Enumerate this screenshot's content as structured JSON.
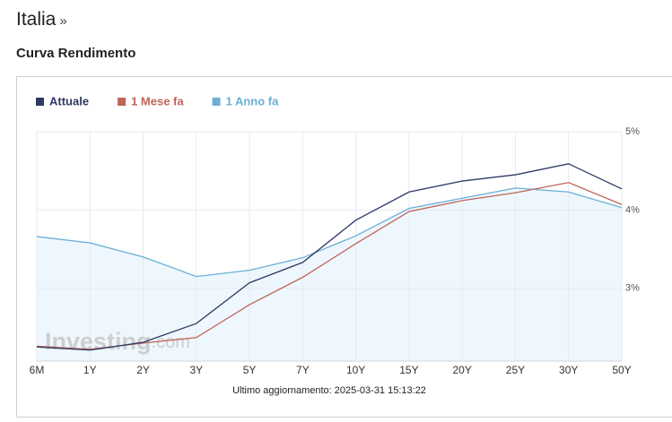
{
  "header": {
    "title": "Italia",
    "arrow": "»",
    "subtitle": "Curva Rendimento"
  },
  "chart_data": {
    "type": "line",
    "categories": [
      "6M",
      "1Y",
      "2Y",
      "3Y",
      "5Y",
      "7Y",
      "10Y",
      "15Y",
      "20Y",
      "25Y",
      "30Y",
      "50Y"
    ],
    "series": [
      {
        "name": "Attuale",
        "color": "#2e3a63",
        "values": [
          2.25,
          2.21,
          2.31,
          2.55,
          3.07,
          3.33,
          3.87,
          4.23,
          4.37,
          4.45,
          4.59,
          4.27
        ]
      },
      {
        "name": "1 Mese fa",
        "color": "#c0645a",
        "values": [
          2.26,
          2.22,
          2.3,
          2.37,
          2.79,
          3.14,
          3.57,
          3.98,
          4.12,
          4.22,
          4.35,
          4.07
        ]
      },
      {
        "name": "1 Anno fa",
        "color": "#6ab0d6",
        "fill": "#eef7fd",
        "values": [
          3.66,
          3.58,
          3.4,
          3.15,
          3.23,
          3.39,
          3.67,
          4.02,
          4.15,
          4.28,
          4.23,
          4.03
        ]
      }
    ],
    "ylim": [
      2.07,
      5
    ],
    "yticks": [
      {
        "value": 3,
        "label": "3%"
      },
      {
        "value": 4,
        "label": "4%"
      },
      {
        "value": 5,
        "label": "5%"
      }
    ],
    "grid": true,
    "y_axis_side": "right",
    "watermark": [
      "Investing",
      ".com"
    ],
    "footer": "Ultimo aggiornamento: 2025-03-31 15:13:22"
  }
}
